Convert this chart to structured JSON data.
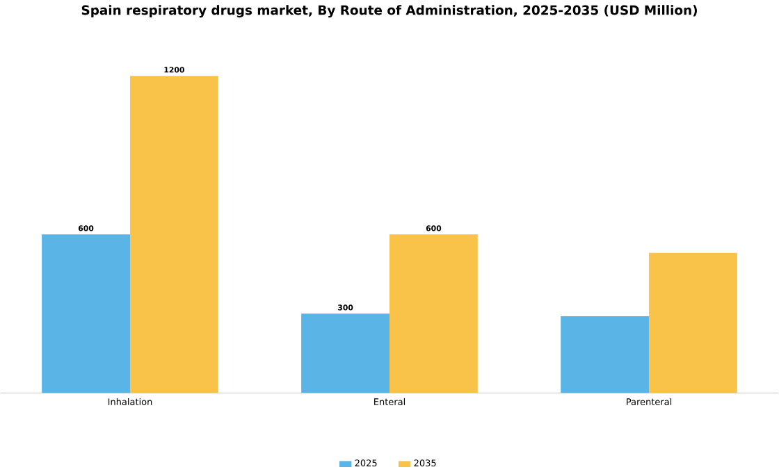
{
  "chart_data": {
    "type": "bar",
    "title": "Spain respiratory drugs market, By Route of Administration, 2025-2035 (USD Million)",
    "categories": [
      "Inhalation",
      "Enteral",
      "Parenteral"
    ],
    "series": [
      {
        "name": "2025",
        "color": "#5ab4e5",
        "values": [
          600,
          300,
          290
        ],
        "value_labels": [
          "600",
          "300",
          null
        ]
      },
      {
        "name": "2035",
        "color": "#f9c34a",
        "values": [
          1200,
          600,
          530
        ],
        "value_labels": [
          "1200",
          "600",
          null
        ]
      }
    ],
    "legend": "bottom"
  }
}
